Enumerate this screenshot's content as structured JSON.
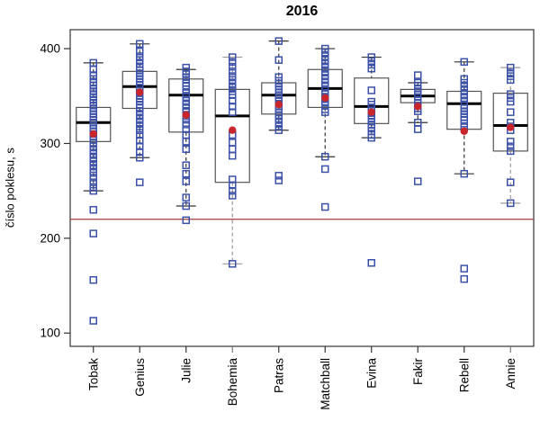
{
  "header": {
    "title": "2016"
  },
  "y_axis": {
    "label": "číslo poklesu, s",
    "ticks": [
      "100",
      "200",
      "300",
      "400"
    ]
  },
  "chart_data": {
    "type": "boxplot",
    "title": "2016",
    "ylabel": "číslo poklesu, s",
    "xlabel": "",
    "ylim": [
      86,
      420
    ],
    "yticks": [
      100,
      200,
      300,
      400
    ],
    "grid": false,
    "legend": "none",
    "reference_line": {
      "value": 220,
      "color": "#a83c3c"
    },
    "point_marker": {
      "shape": "open-square",
      "color": "#3b51a8"
    },
    "mean_marker": {
      "shape": "filled-circle",
      "color": "#c8252c"
    },
    "box_color": "#555555",
    "median_color": "#000000",
    "categories": [
      "Tobak",
      "Genius",
      "Julie",
      "Bohemia",
      "Patras",
      "Matchball",
      "Evina",
      "Fakir",
      "Rebell",
      "Annie"
    ],
    "series": [
      {
        "label": "Tobak",
        "whisker_low": 250,
        "q1": 302,
        "median": 322,
        "q3": 338,
        "whisker_high": 385,
        "mean": 310,
        "gray_whisker": false,
        "points": [
          385,
          378,
          372,
          368,
          364,
          361,
          358,
          355,
          352,
          349,
          346,
          343,
          340,
          337,
          334,
          331,
          328,
          325,
          322,
          319,
          316,
          313,
          310,
          307,
          304,
          301,
          297,
          293,
          289,
          285,
          281,
          277,
          273,
          269,
          264,
          259,
          254,
          250,
          230,
          205,
          156,
          113
        ]
      },
      {
        "label": "Genius",
        "whisker_low": 285,
        "q1": 337,
        "median": 360,
        "q3": 376,
        "whisker_high": 405,
        "mean": 354,
        "gray_whisker": false,
        "points": [
          405,
          397,
          392,
          388,
          384,
          380,
          377,
          374,
          371,
          368,
          365,
          362,
          359,
          356,
          353,
          350,
          347,
          344,
          341,
          338,
          334,
          330,
          326,
          322,
          318,
          314,
          309,
          303,
          297,
          291,
          285,
          259
        ]
      },
      {
        "label": "Julie",
        "whisker_low": 234,
        "q1": 312,
        "median": 351,
        "q3": 368,
        "whisker_high": 378,
        "mean": 330,
        "gray_whisker": false,
        "points": [
          380,
          376,
          373,
          370,
          367,
          364,
          361,
          357,
          353,
          349,
          345,
          341,
          337,
          333,
          329,
          325,
          320,
          315,
          309,
          302,
          294,
          277,
          268,
          260,
          243,
          234,
          219
        ]
      },
      {
        "label": "Bohemia",
        "whisker_low": 173,
        "q1": 259,
        "median": 329,
        "q3": 357,
        "whisker_high": 391,
        "mean": 314,
        "gray_whisker": true,
        "points": [
          391,
          386,
          381,
          376,
          371,
          367,
          363,
          359,
          355,
          351,
          345,
          339,
          333,
          309,
          301,
          294,
          287,
          262,
          256,
          250,
          245,
          173
        ]
      },
      {
        "label": "Patras",
        "whisker_low": 314,
        "q1": 331,
        "median": 351,
        "q3": 364,
        "whisker_high": 408,
        "mean": 341,
        "gray_whisker": false,
        "points": [
          408,
          388,
          370,
          366,
          363,
          360,
          357,
          354,
          351,
          348,
          345,
          342,
          339,
          336,
          333,
          330,
          326,
          322,
          318,
          314,
          266,
          261
        ]
      },
      {
        "label": "Matchball",
        "whisker_low": 286,
        "q1": 338,
        "median": 358,
        "q3": 378,
        "whisker_high": 400,
        "mean": 348,
        "gray_whisker": false,
        "points": [
          400,
          396,
          392,
          388,
          384,
          380,
          376,
          372,
          368,
          364,
          360,
          356,
          352,
          348,
          344,
          340,
          336,
          333,
          286,
          273,
          233
        ]
      },
      {
        "label": "Evina",
        "whisker_low": 306,
        "q1": 321,
        "median": 339,
        "q3": 369,
        "whisker_high": 391,
        "mean": 333,
        "gray_whisker": false,
        "points": [
          391,
          387,
          383,
          379,
          356,
          344,
          341,
          338,
          335,
          332,
          329,
          326,
          323,
          320,
          317,
          313,
          309,
          306,
          174
        ]
      },
      {
        "label": "Fakir",
        "whisker_low": 322,
        "q1": 343,
        "median": 350,
        "q3": 357,
        "whisker_high": 364,
        "mean": 339,
        "gray_whisker": false,
        "points": [
          372,
          364,
          361,
          358,
          355,
          352,
          349,
          346,
          343,
          340,
          337,
          334,
          322,
          315,
          260
        ]
      },
      {
        "label": "Rebell",
        "whisker_low": 268,
        "q1": 315,
        "median": 342,
        "q3": 355,
        "whisker_high": 386,
        "mean": 313,
        "gray_whisker": false,
        "points": [
          386,
          368,
          364,
          360,
          356,
          352,
          348,
          344,
          340,
          337,
          334,
          331,
          328,
          325,
          321,
          317,
          268,
          168,
          157
        ]
      },
      {
        "label": "Annie",
        "whisker_low": 237,
        "q1": 292,
        "median": 319,
        "q3": 353,
        "whisker_high": 380,
        "mean": 317,
        "gray_whisker": true,
        "points": [
          380,
          375,
          371,
          367,
          352,
          348,
          344,
          333,
          322,
          318,
          314,
          302,
          297,
          292,
          259,
          237
        ]
      }
    ]
  }
}
